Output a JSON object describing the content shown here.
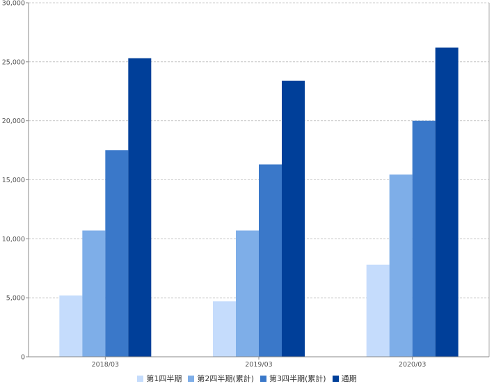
{
  "chart_data": {
    "type": "bar",
    "categories": [
      "2018/03",
      "2019/03",
      "2020/03"
    ],
    "series": [
      {
        "name": "第1四半期",
        "color": "#c5dcfc",
        "values": [
          5200,
          4700,
          7800
        ]
      },
      {
        "name": "第2四半期(累計)",
        "color": "#7eaee8",
        "values": [
          10700,
          10700,
          15450
        ]
      },
      {
        "name": "第3四半期(累計)",
        "color": "#3a78c9",
        "values": [
          17500,
          16300,
          20000
        ]
      },
      {
        "name": "通期",
        "color": "#003f99",
        "values": [
          25300,
          23400,
          26200
        ]
      }
    ],
    "ylim": [
      0,
      30000
    ],
    "yticks": [
      0,
      5000,
      10000,
      15000,
      20000,
      25000,
      30000
    ],
    "ytick_labels": [
      "0",
      "5,000",
      "10,000",
      "15,000",
      "20,000",
      "25,000",
      "30,000"
    ],
    "grid": true,
    "legend_position": "bottom-center",
    "title": "",
    "xlabel": "",
    "ylabel": ""
  }
}
